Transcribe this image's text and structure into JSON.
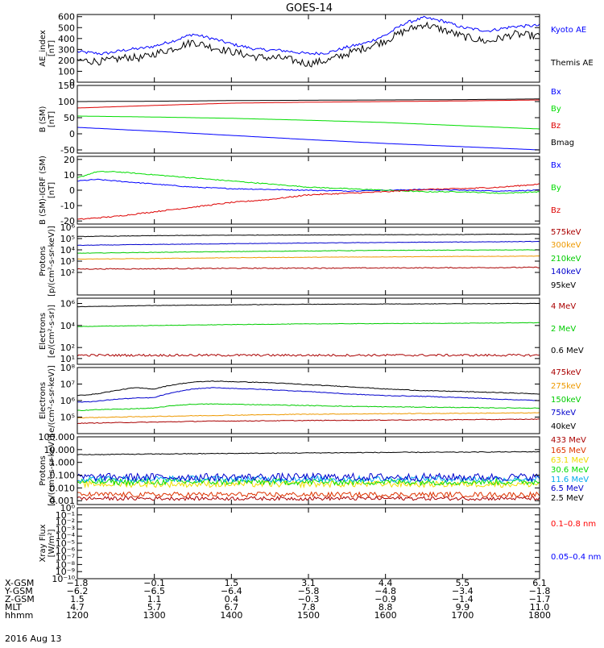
{
  "title": "GOES-14",
  "date": "2016 Aug 13",
  "chart_data": [
    {
      "type": "line",
      "ylabel": [
        "AE_index",
        "[nT]"
      ],
      "yscale": "linear",
      "ylim": [
        0,
        620
      ],
      "yticks": [
        0,
        100,
        200,
        300,
        400,
        500,
        600
      ],
      "yticklabels": [
        "0",
        "100",
        "200",
        "300",
        "400",
        "500",
        "600"
      ],
      "x": [
        1200,
        1220,
        1240,
        1250,
        1300,
        1315,
        1330,
        1345,
        1400,
        1420,
        1440,
        1500,
        1515,
        1530,
        1545,
        1600,
        1615,
        1630,
        1645,
        1700,
        1720,
        1740,
        1800
      ],
      "series": [
        {
          "name": "Kyoto AE",
          "color": "#0000ff",
          "values": [
            280,
            260,
            300,
            310,
            330,
            380,
            440,
            400,
            350,
            300,
            290,
            260,
            270,
            320,
            360,
            430,
            540,
            590,
            560,
            500,
            470,
            510,
            520
          ],
          "noise": 14,
          "label_y": 36
        },
        {
          "name": "Themis AE",
          "color": "#000000",
          "values": [
            200,
            190,
            230,
            220,
            260,
            310,
            370,
            320,
            280,
            230,
            220,
            170,
            200,
            260,
            320,
            380,
            470,
            530,
            480,
            420,
            370,
            440,
            420
          ],
          "noise": 35,
          "label_y": 77
        }
      ]
    },
    {
      "type": "line",
      "ylabel": [
        "B (SM)",
        "[nT]"
      ],
      "yscale": "linear",
      "ylim": [
        -60,
        150
      ],
      "yticks": [
        -50,
        0,
        50,
        100,
        150
      ],
      "yticklabels": [
        "-50",
        "0",
        "50",
        "100",
        "150"
      ],
      "x": [
        1200,
        1300,
        1400,
        1500,
        1600,
        1700,
        1800
      ],
      "series": [
        {
          "name": "Bx",
          "color": "#0000ff",
          "values": [
            20,
            8,
            -5,
            -18,
            -30,
            -40,
            -50
          ],
          "noise": 0,
          "label_y": 113
        },
        {
          "name": "By",
          "color": "#00dd00",
          "values": [
            55,
            52,
            48,
            42,
            35,
            25,
            15
          ],
          "noise": 0,
          "label_y": 134
        },
        {
          "name": "Bz",
          "color": "#dd0000",
          "values": [
            80,
            88,
            95,
            98,
            100,
            102,
            105
          ],
          "noise": 0,
          "label_y": 155
        },
        {
          "name": "Bmag",
          "color": "#000000",
          "values": [
            100,
            101,
            103,
            104,
            105,
            106,
            108
          ],
          "noise": 0,
          "label_y": 176
        }
      ]
    },
    {
      "type": "line",
      "ylabel": [
        "B (SM)-IGRF (SM)",
        "[nT]"
      ],
      "yscale": "linear",
      "ylim": [
        -22,
        22
      ],
      "yticks": [
        -20,
        -10,
        0,
        10,
        20
      ],
      "yticklabels": [
        "-20",
        "-10",
        "0",
        "10",
        "20"
      ],
      "x": [
        1200,
        1215,
        1230,
        1300,
        1330,
        1400,
        1430,
        1500,
        1530,
        1600,
        1630,
        1700,
        1730,
        1800
      ],
      "series": [
        {
          "name": "Bx",
          "color": "#0000ff",
          "values": [
            6,
            7,
            6,
            4,
            2,
            1,
            0.5,
            0,
            -0.5,
            0,
            0.5,
            0,
            -0.5,
            0
          ],
          "noise": 0.3,
          "label_y": 204
        },
        {
          "name": "By",
          "color": "#00dd00",
          "values": [
            8,
            12,
            12,
            10,
            8,
            6,
            4,
            2,
            1,
            0,
            -1,
            -1,
            -2,
            -1
          ],
          "noise": 0.3,
          "label_y": 232
        },
        {
          "name": "Bz",
          "color": "#dd0000",
          "values": [
            -19,
            -18,
            -17,
            -14,
            -11,
            -8,
            -6,
            -3,
            -2,
            -1,
            0.5,
            1,
            2,
            4
          ],
          "noise": 0.4,
          "label_y": 260
        }
      ]
    },
    {
      "type": "line",
      "ylabel": [
        "Protons",
        "[p/(cm²-s-sr-keV)]"
      ],
      "yscale": "log",
      "ylim": [
        1,
        1000000
      ],
      "yticks": [
        100,
        1000,
        10000,
        100000,
        1000000
      ],
      "yticklabels": [
        "10²",
        "10³",
        "10⁴",
        "10⁵",
        "10⁶"
      ],
      "x": [
        1200,
        1300,
        1400,
        1500,
        1600,
        1700,
        1800
      ],
      "series": [
        {
          "name": "575keV",
          "color": "#aa0000",
          "values": [
            200,
            210,
            230,
            240,
            250,
            260,
            280
          ],
          "noise": 0.04,
          "label_y": 287
        },
        {
          "name": "300keV",
          "color": "#ee9900",
          "values": [
            1500,
            1700,
            2000,
            2200,
            2400,
            2600,
            2800
          ],
          "noise": 0.02,
          "label_y": 303
        },
        {
          "name": "210keV",
          "color": "#00cc00",
          "values": [
            5000,
            6000,
            7000,
            8000,
            9000,
            9500,
            10000
          ],
          "noise": 0.02,
          "label_y": 320
        },
        {
          "name": "140keV",
          "color": "#0000cc",
          "values": [
            25000,
            30000,
            35000,
            40000,
            45000,
            50000,
            55000
          ],
          "noise": 0.02,
          "label_y": 336
        },
        {
          "name": "95keV",
          "color": "#000000",
          "values": [
            150000,
            180000,
            200000,
            210000,
            220000,
            230000,
            250000
          ],
          "noise": 0.02,
          "label_y": 353
        }
      ]
    },
    {
      "type": "line",
      "ylabel": [
        "Electrons",
        "[e/(cm²-s-sr)]"
      ],
      "yscale": "log",
      "ylim": [
        3,
        3000000
      ],
      "yticks": [
        10,
        100,
        10000,
        1000000
      ],
      "yticklabels": [
        "10¹",
        "10²",
        "10⁴",
        "10⁶"
      ],
      "x": [
        1200,
        1300,
        1400,
        1500,
        1600,
        1700,
        1800
      ],
      "series": [
        {
          "name": "4 MeV",
          "color": "#aa0000",
          "values": [
            20,
            20,
            20,
            20,
            20,
            20,
            20
          ],
          "noise": 0.1,
          "label_y": 379
        },
        {
          "name": "2 MeV",
          "color": "#00cc00",
          "values": [
            8000,
            10000,
            12000,
            14000,
            15000,
            16000,
            18000
          ],
          "noise": 0.02,
          "label_y": 407
        },
        {
          "name": "0.6 MeV",
          "color": "#000000",
          "values": [
            500000,
            650000,
            750000,
            850000,
            900000,
            950000,
            1000000
          ],
          "noise": 0.02,
          "label_y": 434
        }
      ]
    },
    {
      "type": "line",
      "ylabel": [
        "Electrons",
        "[e/(cm²-s-sr-keV)]"
      ],
      "yscale": "log",
      "ylim": [
        10000,
        100000000
      ],
      "yticks": [
        100000,
        1000000,
        10000000,
        100000000
      ],
      "yticklabels": [
        "10⁵",
        "10⁶",
        "10⁷",
        "10⁸"
      ],
      "x": [
        1200,
        1215,
        1230,
        1245,
        1300,
        1315,
        1330,
        1345,
        1400,
        1430,
        1500,
        1530,
        1600,
        1630,
        1700,
        1730,
        1800
      ],
      "series": [
        {
          "name": "475keV",
          "color": "#aa0000",
          "values": [
            42000,
            44000,
            46000,
            48000,
            50000,
            52000,
            55000,
            57000,
            58000,
            60000,
            62000,
            64000,
            66000,
            68000,
            70000,
            72000,
            75000
          ],
          "noise": 0.02,
          "label_y": 461
        },
        {
          "name": "275keV",
          "color": "#ee9900",
          "values": [
            90000,
            95000,
            100000,
            105000,
            110000,
            115000,
            120000,
            125000,
            130000,
            140000,
            150000,
            155000,
            160000,
            165000,
            170000,
            175000,
            180000
          ],
          "noise": 0.02,
          "label_y": 478
        },
        {
          "name": "150keV",
          "color": "#00cc00",
          "values": [
            250000,
            280000,
            300000,
            320000,
            350000,
            500000,
            600000,
            620000,
            600000,
            550000,
            500000,
            450000,
            420000,
            400000,
            380000,
            360000,
            350000
          ],
          "noise": 0.02,
          "label_y": 495
        },
        {
          "name": "75keV",
          "color": "#0000cc",
          "values": [
            800000,
            900000,
            1200000,
            1400000,
            1500000,
            3000000,
            5000000,
            6000000,
            5500000,
            4500000,
            3500000,
            2500000,
            2000000,
            1800000,
            1500000,
            1200000,
            1000000
          ],
          "noise": 0.02,
          "label_y": 511
        },
        {
          "name": "40keV",
          "color": "#000000",
          "values": [
            2000000,
            2500000,
            4000000,
            6000000,
            5000000,
            9000000,
            13000000,
            15000000,
            14000000,
            12000000,
            9000000,
            7000000,
            5000000,
            4000000,
            3500000,
            3000000,
            2500000
          ],
          "noise": 0.02,
          "label_y": 528
        }
      ]
    },
    {
      "type": "line",
      "ylabel": [
        "Protons",
        "[p/(cm²-s-sr-keV)]"
      ],
      "yscale": "log",
      "ylim": [
        0.0005,
        100
      ],
      "yticks": [
        0.001,
        0.01,
        0.1,
        1,
        10,
        100
      ],
      "yticklabels": [
        "0.001",
        "0.010",
        "0.100",
        "1.000",
        "10.000",
        "100.000"
      ],
      "x": [
        1200,
        1300,
        1400,
        1500,
        1600,
        1700,
        1800
      ],
      "series": [
        {
          "name": "433 MeV",
          "color": "#aa0000",
          "values": [
            0.0015,
            0.0015,
            0.0015,
            0.0015,
            0.0015,
            0.0015,
            0.0015
          ],
          "noise": 0.15,
          "label_y": 545
        },
        {
          "name": "165 MeV",
          "color": "#dd3300",
          "values": [
            0.003,
            0.003,
            0.003,
            0.003,
            0.003,
            0.003,
            0.003
          ],
          "noise": 0.2,
          "label_y": 558
        },
        {
          "name": "63.1 MeV",
          "color": "#eedd00",
          "values": [
            0.02,
            0.02,
            0.02,
            0.02,
            0.02,
            0.02,
            0.02
          ],
          "noise": 0.25,
          "label_y": 570
        },
        {
          "name": "30.6 MeV",
          "color": "#00dd00",
          "values": [
            0.03,
            0.03,
            0.03,
            0.03,
            0.03,
            0.03,
            0.03
          ],
          "noise": 0.25,
          "label_y": 582
        },
        {
          "name": "11.6 MeV",
          "color": "#00aaee",
          "values": [
            0.05,
            0.05,
            0.05,
            0.05,
            0.05,
            0.05,
            0.05
          ],
          "noise": 0.25,
          "label_y": 594
        },
        {
          "name": "6.5 MeV",
          "color": "#0000cc",
          "values": [
            0.07,
            0.07,
            0.07,
            0.07,
            0.07,
            0.07,
            0.07
          ],
          "noise": 0.3,
          "label_y": 605
        },
        {
          "name": "2.5 MeV",
          "color": "#000000",
          "values": [
            4,
            4.5,
            5,
            5.5,
            6,
            6.3,
            6.8
          ],
          "noise": 0.03,
          "label_y": 617
        }
      ]
    },
    {
      "type": "line",
      "ylabel": [
        "Xray Flux",
        "[W/m²]"
      ],
      "yscale": "log",
      "ylim": [
        1e-10,
        1
      ],
      "yticks": [
        1e-10,
        1e-09,
        1e-08,
        1e-07,
        1e-06,
        1e-05,
        0.0001,
        0.001,
        0.01,
        0.1,
        1
      ],
      "yticklabels": [
        "10⁻¹⁰",
        "10⁻⁹",
        "10⁻⁸",
        "10⁻⁷",
        "10⁻⁶",
        "10⁻⁵",
        "10⁻⁴",
        "10⁻³",
        "10⁻²",
        "10⁻¹",
        "10⁰"
      ],
      "x": [],
      "series": [
        {
          "name": "0.1–0.8 nm",
          "color": "#ff0000",
          "values": [],
          "noise": 0,
          "label_y": 649
        },
        {
          "name": "0.05–0.4 nm",
          "color": "#0000ff",
          "values": [],
          "noise": 0,
          "label_y": 690
        }
      ]
    }
  ],
  "xaxis": {
    "ticks": [
      1200,
      1300,
      1400,
      1500,
      1600,
      1700,
      1800
    ],
    "rows": [
      {
        "label": "X-GSM",
        "values": [
          "−1.8",
          "−0.1",
          "1.5",
          "3.1",
          "4.4",
          "5.5",
          "6.1"
        ]
      },
      {
        "label": "Y-GSM",
        "values": [
          "−6.2",
          "−6.5",
          "−6.4",
          "−5.8",
          "−4.8",
          "−3.4",
          "−1.8"
        ]
      },
      {
        "label": "Z-GSM",
        "values": [
          "1.5",
          "1.1",
          "0.4",
          "−0.3",
          "−0.9",
          "−1.4",
          "−1.7"
        ]
      },
      {
        "label": "MLT",
        "values": [
          "4.7",
          "5.7",
          "6.7",
          "7.8",
          "8.8",
          "9.9",
          "11.0"
        ]
      },
      {
        "label": "hhmm",
        "values": [
          "1200",
          "1300",
          "1400",
          "1500",
          "1600",
          "1700",
          "1800"
        ]
      }
    ]
  }
}
